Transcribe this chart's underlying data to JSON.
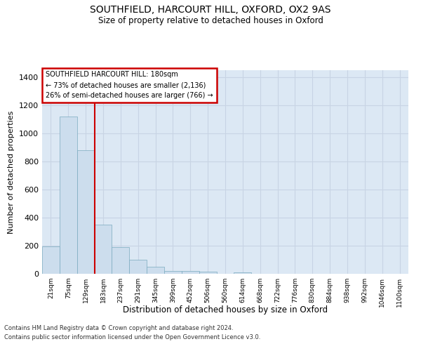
{
  "title_line1": "SOUTHFIELD, HARCOURT HILL, OXFORD, OX2 9AS",
  "title_line2": "Size of property relative to detached houses in Oxford",
  "xlabel": "Distribution of detached houses by size in Oxford",
  "ylabel": "Number of detached properties",
  "bin_labels": [
    "21sqm",
    "75sqm",
    "129sqm",
    "183sqm",
    "237sqm",
    "291sqm",
    "345sqm",
    "399sqm",
    "452sqm",
    "506sqm",
    "560sqm",
    "614sqm",
    "668sqm",
    "722sqm",
    "776sqm",
    "830sqm",
    "884sqm",
    "938sqm",
    "992sqm",
    "1046sqm",
    "1100sqm"
  ],
  "bar_values": [
    195,
    1120,
    880,
    350,
    190,
    100,
    52,
    22,
    18,
    15,
    0,
    12,
    0,
    0,
    0,
    0,
    0,
    0,
    0,
    0,
    0
  ],
  "bar_color": "#ccdded",
  "bar_edge_color": "#7aaabf",
  "vline_x": 3.0,
  "vline_color": "#cc0000",
  "annotation_title": "SOUTHFIELD HARCOURT HILL: 180sqm",
  "annotation_line2": "← 73% of detached houses are smaller (2,136)",
  "annotation_line3": "26% of semi-detached houses are larger (766) →",
  "annotation_box_color": "#cc0000",
  "annotation_bg": "#ffffff",
  "ylim": [
    0,
    1450
  ],
  "yticks": [
    0,
    200,
    400,
    600,
    800,
    1000,
    1200,
    1400
  ],
  "grid_color": "#c8d4e4",
  "bg_color": "#dce8f4",
  "footnote1": "Contains HM Land Registry data © Crown copyright and database right 2024.",
  "footnote2": "Contains public sector information licensed under the Open Government Licence v3.0."
}
